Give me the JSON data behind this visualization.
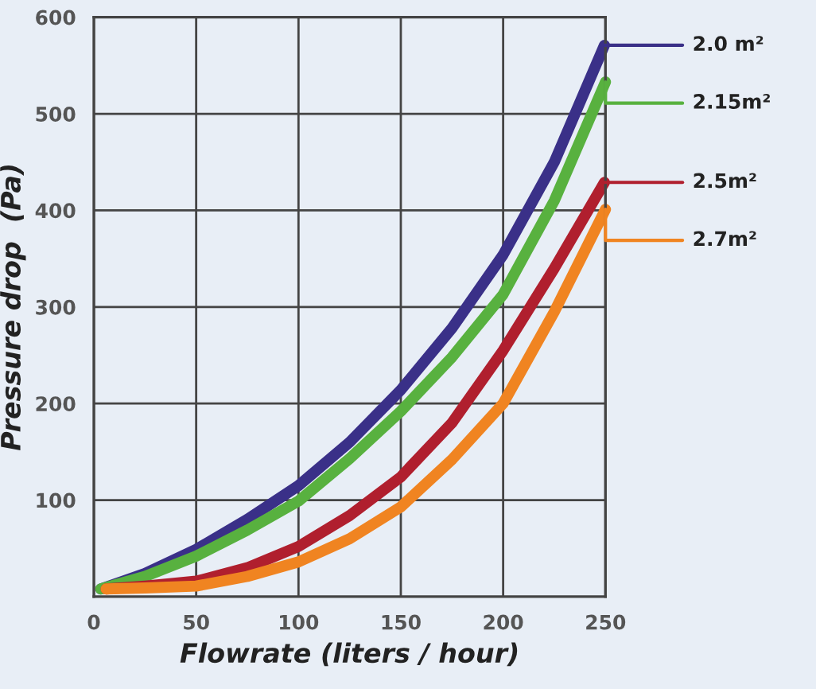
{
  "chart_data": {
    "type": "line",
    "xlabel": "Flowrate (liters / hour)",
    "ylabel": "Pressure drop  (Pa)",
    "xlim": [
      0,
      250
    ],
    "ylim": [
      0,
      600
    ],
    "xticks": [
      0,
      50,
      100,
      150,
      200,
      250
    ],
    "yticks": [
      100,
      200,
      300,
      400,
      500,
      600
    ],
    "grid": true,
    "legend": "right",
    "marker": "none",
    "line_style": "solid",
    "series": [
      {
        "name": "2.0 m²",
        "color": "#3a3088",
        "x": [
          3.4,
          25,
          50,
          75,
          100,
          125,
          150,
          175,
          200,
          225,
          249.5
        ],
        "values": [
          8,
          24,
          49,
          80,
          115,
          160,
          214,
          278,
          354,
          450,
          571
        ]
      },
      {
        "name": "2.15m²",
        "color": "#58b13f",
        "x": [
          3.4,
          25,
          50,
          75,
          100,
          125,
          150,
          175,
          200,
          225,
          250
        ],
        "values": [
          8,
          21,
          42,
          69,
          99,
          143,
          192,
          248,
          313,
          410,
          533
        ]
      },
      {
        "name": "2.5m²",
        "color": "#b01f2e",
        "x": [
          6,
          25,
          50,
          75,
          100,
          125,
          150,
          175,
          200,
          225,
          249.5
        ],
        "values": [
          8,
          11,
          16,
          30,
          52,
          84,
          124,
          180,
          255,
          340,
          429
        ]
      },
      {
        "name": "2.7m²",
        "color": "#f08421",
        "x": [
          6,
          25,
          50,
          75,
          100,
          125,
          150,
          175,
          200,
          225,
          250
        ],
        "values": [
          8,
          9,
          11,
          21,
          36,
          60,
          93,
          142,
          200,
          295,
          401
        ]
      }
    ]
  }
}
